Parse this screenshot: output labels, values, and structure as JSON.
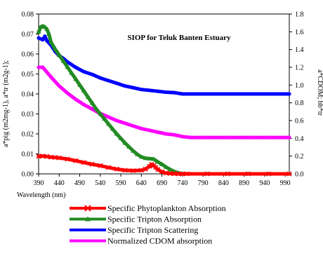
{
  "chart_data": {
    "type": "line",
    "title": "SIOP for Teluk Banten Estuary",
    "xlabel": "Wavelength (nm)",
    "ylabel_left": "a*pig (m2mg-1), a*tr (m2g-1);",
    "ylabel_right": "a*CDOM; bb*tr",
    "xlim": [
      390,
      1000
    ],
    "ylim_left": [
      0,
      0.08
    ],
    "ylim_right": [
      0,
      1.8
    ],
    "x_ticks": [
      390,
      440,
      490,
      540,
      590,
      640,
      690,
      740,
      790,
      840,
      890,
      940,
      990
    ],
    "y_ticks_left": [
      "0.00",
      "0.01",
      "0.02",
      "0.03",
      "0.04",
      "0.05",
      "0.06",
      "0.07",
      "0.08"
    ],
    "y_ticks_right": [
      "0.0",
      "0.2",
      "0.4",
      "0.6",
      "0.8",
      "1.0",
      "1.2",
      "1.4",
      "1.6",
      "1.8"
    ],
    "grid": false,
    "legend_position": "bottom",
    "series": [
      {
        "name": "Specific Phytoplankton Absorption",
        "axis": "left",
        "color": "#ff0000",
        "marker": "x",
        "x": [
          390,
          400,
          410,
          420,
          430,
          440,
          460,
          480,
          500,
          520,
          540,
          560,
          580,
          600,
          620,
          640,
          650,
          660,
          665,
          670,
          675,
          680,
          690,
          700,
          710,
          720,
          730,
          740,
          750,
          800,
          850,
          900,
          950,
          1000
        ],
        "y": [
          0.0088,
          0.0089,
          0.0087,
          0.0084,
          0.0082,
          0.008,
          0.0074,
          0.0066,
          0.0057,
          0.0048,
          0.0041,
          0.0032,
          0.0024,
          0.0018,
          0.0016,
          0.0018,
          0.0024,
          0.0038,
          0.0048,
          0.0042,
          0.0032,
          0.0022,
          0.001,
          0.0004,
          0.0002,
          0.0001,
          0.0,
          0.0,
          0.0,
          0.0,
          0.0,
          0.0,
          0.0,
          0.0
        ]
      },
      {
        "name": "Specific Tripton Absorption",
        "axis": "left",
        "color": "#228b22",
        "marker": "triangle",
        "x": [
          390,
          395,
          400,
          405,
          410,
          415,
          420,
          430,
          440,
          450,
          460,
          470,
          480,
          490,
          500,
          510,
          520,
          530,
          540,
          550,
          560,
          570,
          580,
          590,
          600,
          610,
          620,
          630,
          640,
          650,
          660,
          670,
          680,
          690,
          700,
          710,
          720,
          730,
          740,
          750,
          760,
          800,
          850,
          900,
          950,
          1000
        ],
        "y": [
          0.071,
          0.0735,
          0.074,
          0.0735,
          0.0725,
          0.07,
          0.066,
          0.0625,
          0.0595,
          0.0565,
          0.0535,
          0.0505,
          0.0475,
          0.0445,
          0.0415,
          0.0385,
          0.0355,
          0.0325,
          0.03,
          0.0275,
          0.025,
          0.0225,
          0.02,
          0.0178,
          0.0155,
          0.0135,
          0.0115,
          0.0098,
          0.0085,
          0.0078,
          0.0076,
          0.0074,
          0.006,
          0.0048,
          0.0034,
          0.0022,
          0.0012,
          0.0005,
          0.0001,
          0.0,
          0.0,
          0.0,
          0.0,
          0.0,
          0.0,
          0.0
        ]
      },
      {
        "name": "Specific Tripton Scattering",
        "axis": "right",
        "color": "#0000ff",
        "marker": "none",
        "x": [
          390,
          400,
          405,
          410,
          420,
          430,
          440,
          450,
          460,
          480,
          500,
          520,
          540,
          560,
          580,
          600,
          620,
          640,
          660,
          680,
          700,
          720,
          740,
          760,
          800,
          850,
          900,
          950,
          1000
        ],
        "y": [
          1.53,
          1.51,
          1.55,
          1.5,
          1.45,
          1.38,
          1.33,
          1.3,
          1.26,
          1.2,
          1.15,
          1.12,
          1.08,
          1.05,
          1.02,
          0.99,
          0.97,
          0.95,
          0.94,
          0.93,
          0.92,
          0.915,
          0.9,
          0.9,
          0.9,
          0.9,
          0.9,
          0.9,
          0.9
        ]
      },
      {
        "name": "Normalized CDOM absorption",
        "axis": "right",
        "color": "#ff00ff",
        "marker": "none",
        "x": [
          390,
          400,
          420,
          440,
          460,
          480,
          500,
          520,
          540,
          560,
          580,
          600,
          620,
          640,
          660,
          680,
          700,
          720,
          740,
          760,
          800,
          850,
          900,
          950,
          1000
        ],
        "y": [
          1.2,
          1.2,
          1.09,
          0.99,
          0.91,
          0.84,
          0.78,
          0.73,
          0.68,
          0.64,
          0.6,
          0.57,
          0.54,
          0.51,
          0.49,
          0.47,
          0.45,
          0.44,
          0.42,
          0.41,
          0.41,
          0.41,
          0.41,
          0.41,
          0.41
        ]
      }
    ]
  }
}
